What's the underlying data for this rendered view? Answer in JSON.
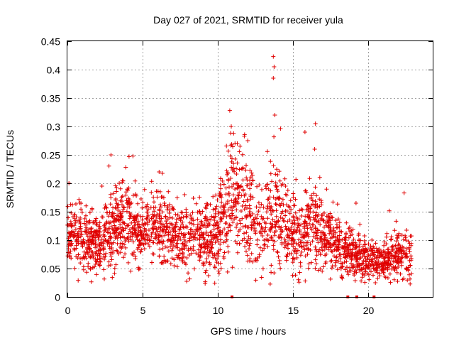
{
  "chart_data": {
    "type": "scatter",
    "title": "Day 027 of 2021, SRMTID for receiver yula",
    "xlabel": "GPS time / hours",
    "ylabel": "SRMTID / TECUs",
    "xlim": [
      0,
      24.3
    ],
    "ylim": [
      0,
      0.45
    ],
    "xticks": [
      0,
      5,
      10,
      15,
      20
    ],
    "yticks": [
      0,
      0.05,
      0.1,
      0.15,
      0.2,
      0.25,
      0.3,
      0.35,
      0.4,
      0.45
    ],
    "ytick_labels": [
      "0",
      "0.05",
      "0.1",
      "0.15",
      "0.2",
      "0.25",
      "0.3",
      "0.35",
      "0.4",
      "0.45"
    ],
    "xtick_labels": [
      "0",
      "5",
      "10",
      "15",
      "20"
    ],
    "grid": true,
    "marker": "+",
    "color": "#e00000",
    "envelope": {
      "hours": [
        0,
        0.5,
        1,
        1.5,
        2,
        2.5,
        3,
        3.5,
        4,
        4.5,
        5,
        5.5,
        6,
        6.5,
        7,
        7.5,
        8,
        8.5,
        9,
        9.5,
        10,
        10.5,
        11,
        11.5,
        12,
        12.5,
        13,
        13.5,
        14,
        14.5,
        15,
        15.5,
        16,
        16.5,
        17,
        17.5,
        18,
        18.5,
        19,
        19.5,
        20,
        20.5,
        21,
        21.5,
        22,
        22.5,
        23
      ],
      "median": [
        0.1,
        0.11,
        0.1,
        0.095,
        0.1,
        0.115,
        0.12,
        0.13,
        0.14,
        0.12,
        0.11,
        0.12,
        0.13,
        0.12,
        0.115,
        0.11,
        0.105,
        0.11,
        0.1,
        0.1,
        0.11,
        0.14,
        0.18,
        0.17,
        0.15,
        0.14,
        0.13,
        0.14,
        0.15,
        0.13,
        0.11,
        0.1,
        0.12,
        0.12,
        0.11,
        0.1,
        0.09,
        0.08,
        0.075,
        0.07,
        0.065,
        0.06,
        0.06,
        0.065,
        0.07,
        0.07,
        0.07
      ],
      "spread": [
        0.04,
        0.04,
        0.035,
        0.035,
        0.035,
        0.04,
        0.045,
        0.045,
        0.05,
        0.04,
        0.035,
        0.035,
        0.04,
        0.04,
        0.035,
        0.035,
        0.035,
        0.035,
        0.035,
        0.035,
        0.045,
        0.06,
        0.07,
        0.065,
        0.06,
        0.06,
        0.05,
        0.06,
        0.06,
        0.05,
        0.04,
        0.04,
        0.05,
        0.05,
        0.04,
        0.035,
        0.03,
        0.03,
        0.025,
        0.025,
        0.025,
        0.02,
        0.02,
        0.025,
        0.03,
        0.03,
        0.025
      ]
    },
    "peaks": [
      {
        "x": 2.9,
        "y": 0.25
      },
      {
        "x": 4.1,
        "y": 0.247
      },
      {
        "x": 6.1,
        "y": 0.22
      },
      {
        "x": 10.8,
        "y": 0.328
      },
      {
        "x": 10.9,
        "y": 0.3
      },
      {
        "x": 11.3,
        "y": 0.27
      },
      {
        "x": 12.0,
        "y": 0.275
      },
      {
        "x": 13.7,
        "y": 0.423
      },
      {
        "x": 13.75,
        "y": 0.405
      },
      {
        "x": 13.7,
        "y": 0.385
      },
      {
        "x": 13.8,
        "y": 0.32
      },
      {
        "x": 15.8,
        "y": 0.29
      },
      {
        "x": 16.5,
        "y": 0.305
      },
      {
        "x": 16.45,
        "y": 0.26
      },
      {
        "x": 22.4,
        "y": 0.183
      },
      {
        "x": 19.2,
        "y": 0.165
      },
      {
        "x": 2.3,
        "y": 0.195
      },
      {
        "x": 7.8,
        "y": 0.18
      }
    ],
    "gap_markers": [
      10.95,
      18.65,
      19.25,
      20.4
    ],
    "data_span_hours": [
      0,
      22.9
    ],
    "point_count": 2400
  }
}
